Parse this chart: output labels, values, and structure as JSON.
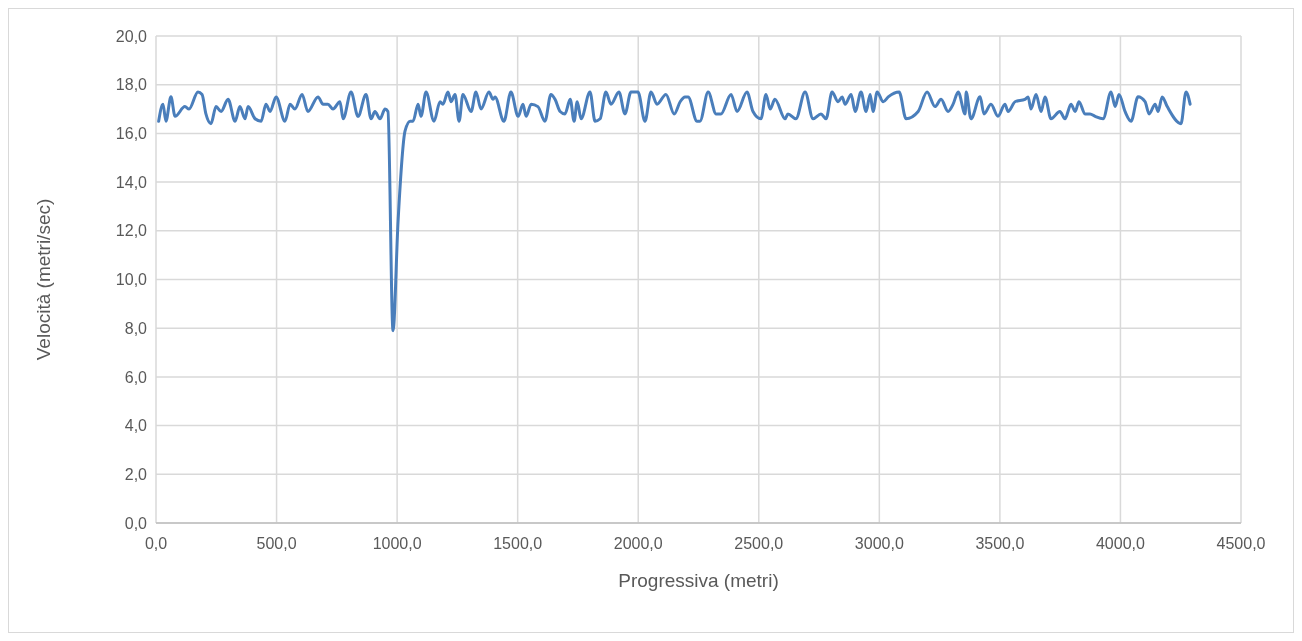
{
  "chart_data": {
    "type": "line",
    "xlabel": "Progressiva (metri)",
    "ylabel": "Velocità (metri/sec)",
    "xlim": [
      0,
      4500
    ],
    "ylim": [
      0,
      20
    ],
    "xticks": [
      {
        "value": 0,
        "label": "0,0"
      },
      {
        "value": 500,
        "label": "500,0"
      },
      {
        "value": 1000,
        "label": "1000,0"
      },
      {
        "value": 1500,
        "label": "1500,0"
      },
      {
        "value": 2000,
        "label": "2000,0"
      },
      {
        "value": 2500,
        "label": "2500,0"
      },
      {
        "value": 3000,
        "label": "3000,0"
      },
      {
        "value": 3500,
        "label": "3500,0"
      },
      {
        "value": 4000,
        "label": "4000,0"
      },
      {
        "value": 4500,
        "label": "4500,0"
      }
    ],
    "yticks": [
      {
        "value": 0,
        "label": "0,0"
      },
      {
        "value": 2,
        "label": "2,0"
      },
      {
        "value": 4,
        "label": "4,0"
      },
      {
        "value": 6,
        "label": "6,0"
      },
      {
        "value": 8,
        "label": "8,0"
      },
      {
        "value": 10,
        "label": "10,0"
      },
      {
        "value": 12,
        "label": "12,0"
      },
      {
        "value": 14,
        "label": "14,0"
      },
      {
        "value": 16,
        "label": "16,0"
      },
      {
        "value": 18,
        "label": "18,0"
      },
      {
        "value": 20,
        "label": "20,0"
      }
    ],
    "grid": true,
    "marker": "none",
    "line_style": "solid",
    "x": [
      11,
      29,
      41,
      62,
      79,
      120,
      137,
      174,
      191,
      207,
      228,
      249,
      270,
      299,
      328,
      348,
      369,
      382,
      411,
      436,
      456,
      473,
      498,
      535,
      556,
      576,
      606,
      630,
      672,
      693,
      713,
      734,
      763,
      776,
      809,
      838,
      871,
      892,
      908,
      929,
      950,
      962,
      983,
      1004,
      1033,
      1054,
      1066,
      1087,
      1099,
      1120,
      1153,
      1178,
      1190,
      1211,
      1224,
      1240,
      1257,
      1273,
      1307,
      1327,
      1348,
      1381,
      1398,
      1406,
      1443,
      1472,
      1502,
      1522,
      1535,
      1556,
      1584,
      1613,
      1638,
      1655,
      1676,
      1696,
      1718,
      1734,
      1747,
      1763,
      1800,
      1821,
      1842,
      1866,
      1887,
      1920,
      1945,
      1970,
      1999,
      2028,
      2053,
      2078,
      2115,
      2149,
      2174,
      2194,
      2207,
      2244,
      2256,
      2290,
      2323,
      2343,
      2385,
      2410,
      2451,
      2476,
      2509,
      2530,
      2547,
      2567,
      2609,
      2621,
      2654,
      2692,
      2725,
      2758,
      2779,
      2804,
      2829,
      2846,
      2858,
      2883,
      2900,
      2924,
      2945,
      2962,
      2974,
      2991,
      3016,
      3037,
      3082,
      3111,
      3161,
      3198,
      3231,
      3256,
      3285,
      3306,
      3327,
      3356,
      3360,
      3380,
      3418,
      3434,
      3463,
      3492,
      3521,
      3534,
      3563,
      3604,
      3617,
      3629,
      3650,
      3671,
      3687,
      3712,
      3749,
      3770,
      3795,
      3812,
      3828,
      3853,
      3874,
      3895,
      3928,
      3961,
      3978,
      3994,
      4019,
      4044,
      4073,
      4102,
      4119,
      4144,
      4156,
      4173,
      4194,
      4251,
      4272,
      4289
    ],
    "series": [
      {
        "color": "#4a7ebb",
        "values": [
          16.5,
          17.2,
          16.5,
          17.5,
          16.7,
          17.1,
          17.0,
          17.7,
          17.6,
          16.8,
          16.4,
          17.1,
          16.9,
          17.4,
          16.5,
          17.1,
          16.6,
          17.1,
          16.6,
          16.5,
          17.2,
          16.9,
          17.5,
          16.5,
          17.2,
          17.0,
          17.6,
          16.9,
          17.5,
          17.2,
          17.2,
          17.0,
          17.3,
          16.6,
          17.7,
          16.7,
          17.6,
          16.6,
          16.9,
          16.6,
          17.0,
          16.9,
          7.9,
          12.4,
          16.1,
          16.5,
          16.5,
          17.2,
          16.7,
          17.7,
          16.5,
          17.3,
          17.2,
          17.7,
          17.3,
          17.6,
          16.5,
          17.6,
          16.9,
          17.7,
          17.0,
          17.7,
          17.4,
          17.5,
          16.5,
          17.7,
          16.7,
          17.2,
          16.7,
          17.2,
          17.1,
          16.5,
          17.6,
          17.4,
          16.9,
          16.8,
          17.4,
          16.5,
          17.3,
          16.6,
          17.7,
          16.5,
          16.6,
          17.7,
          17.2,
          17.7,
          16.8,
          17.7,
          17.7,
          16.5,
          17.7,
          17.2,
          17.6,
          16.8,
          17.3,
          17.5,
          17.5,
          16.5,
          16.5,
          17.7,
          16.8,
          16.8,
          17.6,
          16.9,
          17.7,
          16.9,
          16.6,
          17.6,
          17.0,
          17.4,
          16.6,
          16.8,
          16.6,
          17.7,
          16.6,
          16.8,
          16.6,
          17.7,
          17.3,
          17.5,
          17.2,
          17.6,
          16.9,
          17.7,
          16.9,
          17.6,
          16.9,
          17.7,
          17.3,
          17.5,
          17.7,
          16.6,
          16.9,
          17.7,
          17.1,
          17.4,
          16.9,
          17.2,
          17.7,
          16.8,
          17.7,
          16.6,
          17.5,
          16.8,
          17.2,
          16.7,
          17.2,
          16.9,
          17.3,
          17.4,
          17.5,
          17.0,
          17.6,
          16.9,
          17.5,
          16.6,
          16.9,
          16.6,
          17.2,
          16.9,
          17.3,
          16.8,
          16.8,
          16.7,
          16.6,
          17.7,
          17.1,
          17.6,
          16.9,
          16.5,
          17.5,
          17.3,
          16.8,
          17.2,
          16.9,
          17.5,
          17.1,
          16.4,
          17.7,
          17.2
        ]
      }
    ]
  }
}
